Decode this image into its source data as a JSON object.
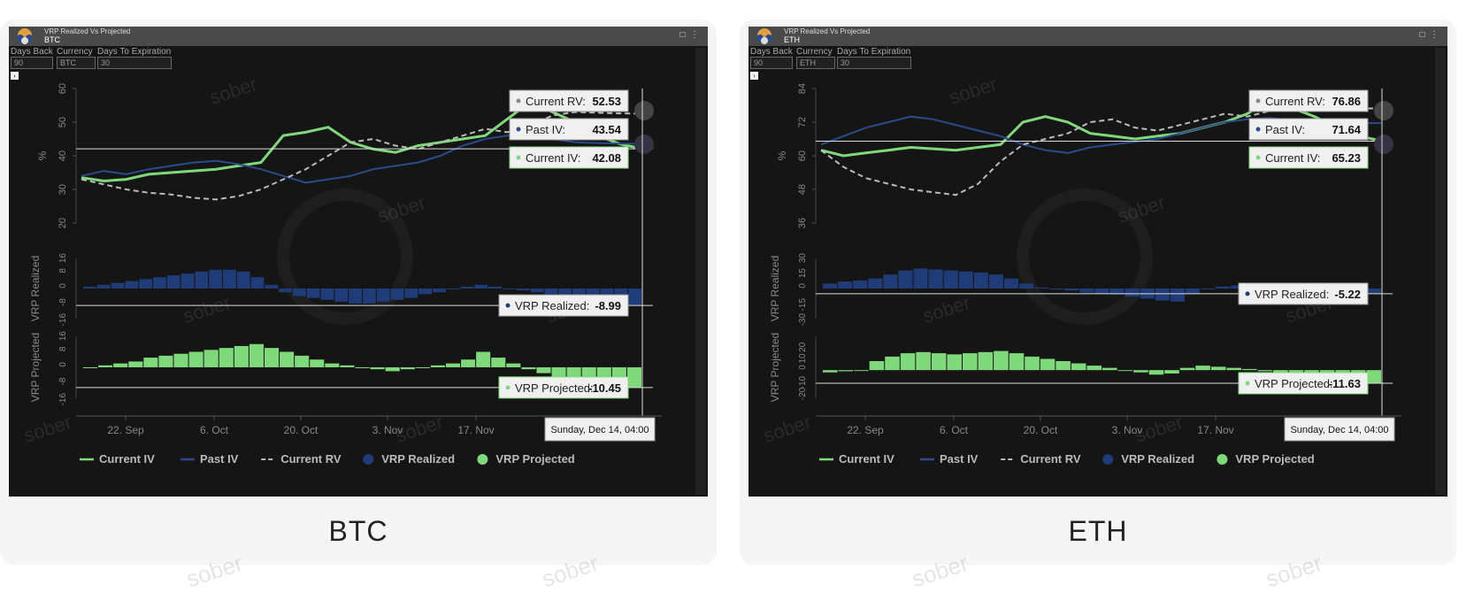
{
  "page": {
    "watermark": "sober"
  },
  "cards": [
    {
      "label": "BTC",
      "window_title": "VRP Realized Vs Projected",
      "window_subtitle": "BTC",
      "controls": {
        "days_back_label": "Days Back",
        "days_back_value": "90",
        "currency_label": "Currency",
        "currency_value": "BTC",
        "dte_label": "Days To Expiration",
        "dte_value": "30"
      },
      "chart_data": {
        "type": "line",
        "x_ticks": [
          "22. Sep",
          "6. Oct",
          "20. Oct",
          "3. Nov",
          "17. Nov"
        ],
        "crosshair_label": "Sunday, Dec 14, 04:00",
        "top_panel": {
          "ylabel": "%",
          "yticks": [
            20,
            30,
            40,
            50,
            60
          ],
          "ylim": [
            20,
            60
          ],
          "series": [
            {
              "name": "Current IV",
              "color": "#7fd97a",
              "values": [
                33.5,
                32.5,
                33.0,
                34.5,
                35.0,
                35.5,
                36.0,
                37.0,
                38.0,
                46.0,
                47.0,
                48.5,
                44.0,
                42.0,
                41.0,
                43.0,
                44.0,
                45.0,
                46.0,
                51.0,
                56.0,
                53.0,
                50.0,
                46.0,
                43.5,
                42.08
              ]
            },
            {
              "name": "Past IV",
              "color": "#2a4a8a",
              "values": [
                34.0,
                35.5,
                34.5,
                36.0,
                37.0,
                38.0,
                38.5,
                37.5,
                36.0,
                34.0,
                32.0,
                33.0,
                34.0,
                36.0,
                37.0,
                38.0,
                40.0,
                43.0,
                45.0,
                46.0,
                46.5,
                45.0,
                44.0,
                43.8,
                43.6,
                43.54
              ]
            },
            {
              "name": "Current RV",
              "color": "#bbbbbb",
              "values": [
                33.0,
                31.5,
                30.0,
                29.0,
                28.5,
                27.5,
                27.0,
                28.0,
                30.0,
                33.0,
                36.0,
                40.0,
                44.0,
                45.0,
                43.0,
                42.0,
                44.0,
                46.0,
                48.0,
                47.0,
                49.0,
                52.0,
                53.0,
                52.8,
                52.6,
                52.53
              ]
            }
          ],
          "tooltips": [
            {
              "label": "Current RV:",
              "value": "52.53",
              "series": "Current RV"
            },
            {
              "label": "Past IV:",
              "value": "43.54",
              "series": "Past IV"
            },
            {
              "label": "Current IV:",
              "value": "42.08",
              "series": "Current IV"
            }
          ]
        },
        "mid_panel": {
          "ylabel": "VRP Realized",
          "yticks": [
            -16,
            -8,
            0,
            8,
            16
          ],
          "ylim": [
            -16,
            16
          ],
          "color": "#1f3c78",
          "values": [
            1,
            2,
            3,
            4,
            5,
            6,
            7,
            8,
            9,
            10,
            10,
            9,
            6,
            2,
            -2,
            -4,
            -5,
            -6,
            -7,
            -8,
            -8,
            -7,
            -6,
            -5,
            -3,
            -2,
            0,
            1,
            2,
            1,
            0,
            -1,
            -2,
            -3,
            -4,
            -5,
            -6,
            -7,
            -8,
            -8.99
          ],
          "tooltip": {
            "label": "VRP Realized:",
            "value": "-8.99"
          }
        },
        "bottom_panel": {
          "ylabel": "VRP Projected",
          "yticks": [
            -16,
            -8,
            0,
            8,
            16
          ],
          "ylim": [
            -16,
            16
          ],
          "color": "#7fd97a",
          "values": [
            0,
            1,
            2,
            3,
            5,
            6,
            7,
            8,
            9,
            10,
            11,
            12,
            10,
            8,
            6,
            4,
            2,
            1,
            0,
            -1,
            -2,
            -1,
            0,
            1,
            2,
            4,
            8,
            5,
            2,
            -1,
            -3,
            -5,
            -7,
            -8,
            -9,
            -10,
            -10.45
          ],
          "tooltip": {
            "label": "VRP Projected:",
            "value": "-10.45"
          }
        },
        "legend": [
          {
            "name": "Current IV",
            "style": "line",
            "color": "#7fd97a"
          },
          {
            "name": "Past IV",
            "style": "line",
            "color": "#2a4a8a"
          },
          {
            "name": "Current RV",
            "style": "dash",
            "color": "#bbbbbb"
          },
          {
            "name": "VRP Realized",
            "style": "dot",
            "color": "#1f3c78"
          },
          {
            "name": "VRP Projected",
            "style": "dot",
            "color": "#7fd97a"
          }
        ]
      }
    },
    {
      "label": "ETH",
      "window_title": "VRP Realized Vs Projected",
      "window_subtitle": "ETH",
      "controls": {
        "days_back_label": "Days Back",
        "days_back_value": "90",
        "currency_label": "Currency",
        "currency_value": "ETH",
        "dte_label": "Days To Expiration",
        "dte_value": "30"
      },
      "chart_data": {
        "type": "line",
        "x_ticks": [
          "22. Sep",
          "6. Oct",
          "20. Oct",
          "3. Nov",
          "17. Nov"
        ],
        "crosshair_label": "Sunday, Dec 14, 04:00",
        "top_panel": {
          "ylabel": "%",
          "yticks": [
            36,
            48,
            60,
            72,
            84
          ],
          "ylim": [
            36,
            84
          ],
          "series": [
            {
              "name": "Current IV",
              "color": "#7fd97a",
              "values": [
                62.0,
                60.0,
                61.0,
                62.0,
                63.0,
                62.5,
                62.0,
                63.0,
                64.0,
                72.0,
                74.0,
                72.0,
                68.0,
                67.0,
                66.0,
                67.0,
                68.0,
                70.0,
                72.0,
                75.0,
                80.0,
                77.0,
                74.0,
                70.0,
                67.0,
                65.23
              ]
            },
            {
              "name": "Past IV",
              "color": "#2a4a8a",
              "values": [
                64.0,
                67.0,
                70.0,
                72.0,
                74.0,
                73.0,
                71.0,
                69.0,
                67.0,
                64.0,
                62.0,
                61.0,
                63.0,
                64.0,
                65.0,
                66.0,
                68.0,
                70.0,
                72.0,
                73.0,
                73.5,
                72.5,
                72.0,
                71.8,
                71.7,
                71.64
              ]
            },
            {
              "name": "Current RV",
              "color": "#bbbbbb",
              "values": [
                62.0,
                56.0,
                52.0,
                50.0,
                48.0,
                47.0,
                46.0,
                50.0,
                58.0,
                64.0,
                66.0,
                68.0,
                72.0,
                73.0,
                70.0,
                69.0,
                71.0,
                73.0,
                75.0,
                74.0,
                76.0,
                78.0,
                77.0,
                76.9,
                76.88,
                76.86
              ]
            }
          ],
          "tooltips": [
            {
              "label": "Current RV:",
              "value": "76.86",
              "series": "Current RV"
            },
            {
              "label": "Past IV:",
              "value": "71.64",
              "series": "Past IV"
            },
            {
              "label": "Current IV:",
              "value": "65.23",
              "series": "Current IV"
            }
          ]
        },
        "mid_panel": {
          "ylabel": "VRP Realized",
          "yticks": [
            -30,
            -15,
            0,
            15,
            30
          ],
          "ylim": [
            -30,
            30
          ],
          "color": "#1f3c78",
          "values": [
            5,
            7,
            8,
            10,
            14,
            18,
            20,
            19,
            18,
            17,
            16,
            14,
            10,
            5,
            1,
            -1,
            -2,
            -4,
            -5,
            -6,
            -8,
            -10,
            -12,
            -13,
            -5,
            0,
            2,
            3,
            2,
            1,
            0,
            -1,
            -2,
            -3,
            -4,
            -5,
            -5.22
          ],
          "tooltip": {
            "label": "VRP Realized:",
            "value": "-5.22"
          }
        },
        "bottom_panel": {
          "ylabel": "VRP Projected",
          "yticks": [
            -20,
            -10,
            0,
            10,
            20
          ],
          "ylim": [
            -25,
            30
          ],
          "color": "#7fd97a",
          "values": [
            -2,
            -1,
            0,
            8,
            12,
            15,
            16,
            15,
            14,
            15,
            16,
            17,
            15,
            12,
            10,
            8,
            6,
            4,
            2,
            0,
            -2,
            -4,
            -3,
            2,
            4,
            3,
            2,
            1,
            -1,
            -3,
            -5,
            -7,
            -9,
            -10,
            -11,
            -11.63
          ],
          "tooltip": {
            "label": "VRP Projected:",
            "value": "-11.63"
          }
        },
        "legend": [
          {
            "name": "Current IV",
            "style": "line",
            "color": "#7fd97a"
          },
          {
            "name": "Past IV",
            "style": "line",
            "color": "#2a4a8a"
          },
          {
            "name": "Current RV",
            "style": "dash",
            "color": "#bbbbbb"
          },
          {
            "name": "VRP Realized",
            "style": "dot",
            "color": "#1f3c78"
          },
          {
            "name": "VRP Projected",
            "style": "dot",
            "color": "#7fd97a"
          }
        ]
      }
    }
  ]
}
